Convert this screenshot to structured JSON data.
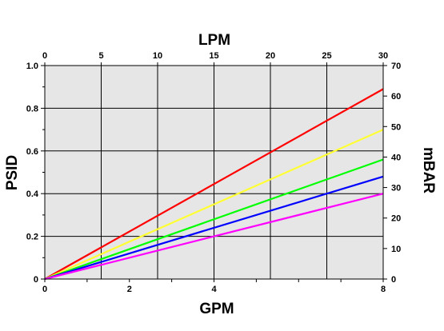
{
  "chart_data": {
    "type": "line",
    "title": "",
    "xlabel_bottom": "GPM",
    "xlabel_top": "LPM",
    "ylabel_left": "PSID",
    "ylabel_right": "mBAR",
    "xlim": [
      0,
      8
    ],
    "ylim": [
      0,
      1.0
    ],
    "x_ticks_bottom": [
      0,
      2,
      4,
      8
    ],
    "x_ticks_top": [
      0,
      5,
      10,
      15,
      20,
      25,
      30
    ],
    "top_axis_range": [
      0,
      30
    ],
    "y_ticks_left": [
      0,
      0.2,
      0.4,
      0.6,
      0.8,
      1.0
    ],
    "y_tick_labels_left": [
      "0",
      "0.2",
      "0.4",
      "0.6",
      "0.8",
      "1.0"
    ],
    "y_ticks_right": [
      0,
      10,
      20,
      30,
      40,
      50,
      60,
      70
    ],
    "right_axis_range": [
      0,
      70
    ],
    "grid": true,
    "background": "#e6e6e6",
    "series": [
      {
        "color": "#ff0000",
        "x": [
          0,
          8
        ],
        "y": [
          0,
          0.89
        ]
      },
      {
        "color": "#ffff33",
        "x": [
          0,
          8
        ],
        "y": [
          0,
          0.7
        ]
      },
      {
        "color": "#00ff00",
        "x": [
          0,
          8
        ],
        "y": [
          0,
          0.56
        ]
      },
      {
        "color": "#0000ff",
        "x": [
          0,
          8
        ],
        "y": [
          0,
          0.48
        ]
      },
      {
        "color": "#ff00ff",
        "x": [
          0,
          8
        ],
        "y": [
          0,
          0.4
        ]
      }
    ]
  }
}
